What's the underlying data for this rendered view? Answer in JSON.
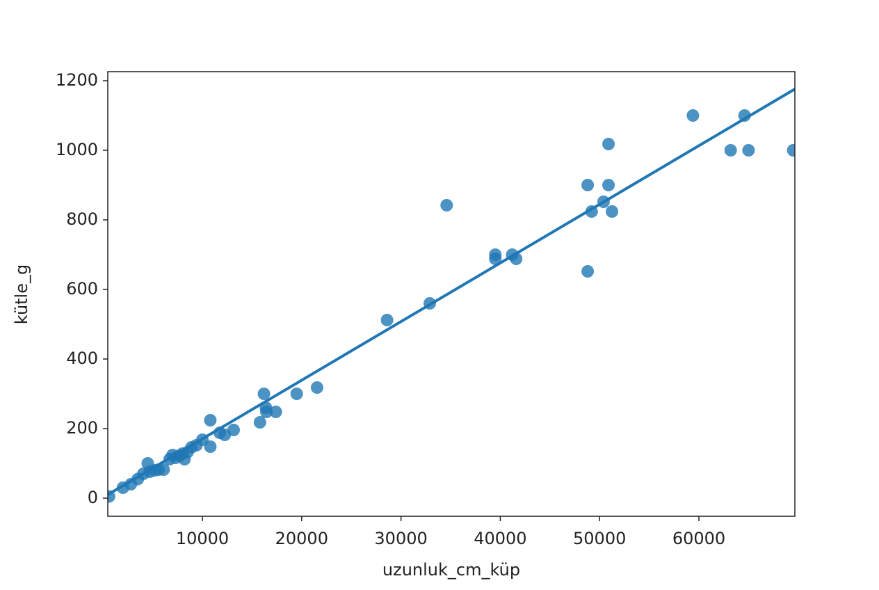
{
  "chart_data": {
    "type": "scatter",
    "x_label": "uzunluk_cm_küp",
    "y_label": "kütle_g",
    "color": "#1f77b4",
    "xlim": [
      476,
      69664
    ],
    "ylim": [
      -52,
      1226
    ],
    "xticks": [
      10000,
      20000,
      30000,
      40000,
      50000,
      60000
    ],
    "yticks": [
      0,
      200,
      400,
      600,
      800,
      1000,
      1200
    ],
    "points": {
      "x": [
        600,
        2000,
        2800,
        3500,
        4050,
        4500,
        4700,
        5200,
        5600,
        6100,
        6700,
        7000,
        7300,
        7700,
        8000,
        8200,
        8500,
        8900,
        9400,
        10000,
        10800,
        10800,
        11750,
        12250,
        13150,
        15800,
        16200,
        16400,
        16450,
        17400,
        19500,
        21550,
        28600,
        32900,
        34600,
        39500,
        39500,
        41200,
        41600,
        48800,
        48800,
        49200,
        50400,
        50900,
        50900,
        51250,
        59400,
        63200,
        64600,
        65000,
        69500
      ],
      "y": [
        5,
        30,
        40,
        55,
        70,
        100,
        76,
        80,
        82,
        82,
        112,
        124,
        116,
        122,
        128,
        112,
        132,
        146,
        152,
        168,
        224,
        148,
        188,
        182,
        196,
        218,
        300,
        260,
        248,
        248,
        300,
        318,
        512,
        560,
        842,
        700,
        688,
        700,
        688,
        900,
        652,
        824,
        852,
        1018,
        900,
        824,
        1100,
        1000,
        1100,
        1000,
        1000
      ]
    },
    "fit_line": {
      "x": [
        476,
        69664
      ],
      "y": [
        10,
        1176
      ]
    }
  }
}
